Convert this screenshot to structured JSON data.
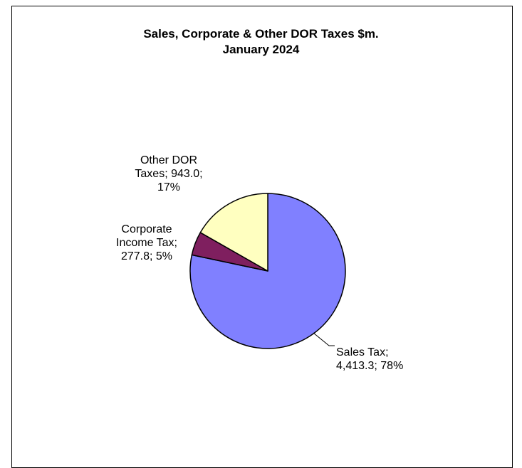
{
  "chart_data": {
    "type": "pie",
    "title": "Sales, Corporate & Other DOR Taxes $m.",
    "subtitle": "January 2024",
    "slices": [
      {
        "name": "Sales Tax",
        "value": 4413.3,
        "percent": 78,
        "color": "#8080ff",
        "label_lines": [
          "Sales Tax;",
          "4,413.3; 78%"
        ]
      },
      {
        "name": "Corporate Income Tax",
        "value": 277.8,
        "percent": 5,
        "color": "#7f1f5f",
        "label_lines": [
          "Corporate",
          "Income Tax;",
          "277.8; 5%"
        ]
      },
      {
        "name": "Other DOR Taxes",
        "value": 943.0,
        "percent": 17,
        "color": "#ffffc0",
        "label_lines": [
          "Other DOR",
          "Taxes; 943.0;",
          "17%"
        ]
      }
    ],
    "start_angle_deg": 0,
    "direction": "clockwise",
    "outline_color": "#000000",
    "legend": "none"
  }
}
